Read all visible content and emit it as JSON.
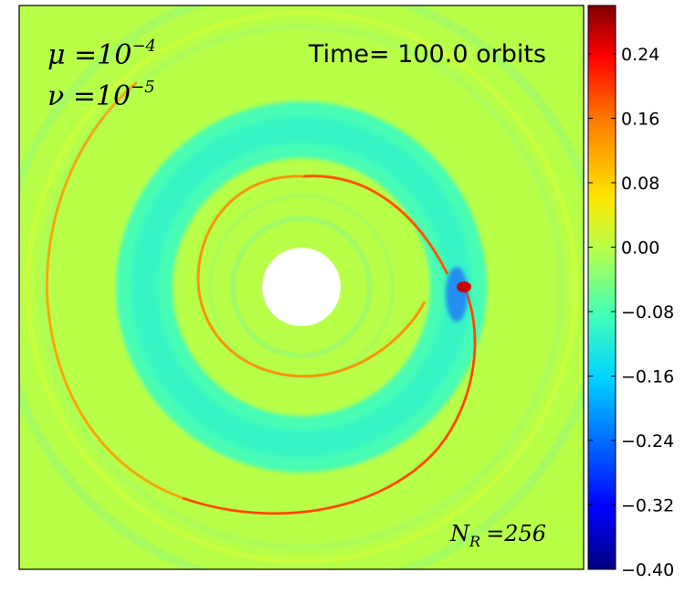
{
  "chart_data": {
    "type": "heatmap",
    "title": "Time= 100.0 orbits",
    "annotations": {
      "mu": "μ =10",
      "mu_exp": "−4",
      "nu": "ν =10",
      "nu_exp": "−5",
      "nr_main": "N",
      "nr_sub": "R",
      "nr_value": "=256"
    },
    "colorbar": {
      "range": [
        -0.4,
        0.3
      ],
      "ticks": [
        "0.24",
        "0.16",
        "0.08",
        "0.00",
        "−0.08",
        "−0.16",
        "−0.24",
        "−0.32",
        "−0.40"
      ],
      "tick_values": [
        0.24,
        0.16,
        0.08,
        0.0,
        -0.08,
        -0.16,
        -0.24,
        -0.32,
        -0.4
      ],
      "colormap": "jet"
    },
    "xlabel": "",
    "ylabel": "",
    "grid": false
  },
  "colors": {
    "background_field": "#b8ff48",
    "frame": "#000000"
  }
}
